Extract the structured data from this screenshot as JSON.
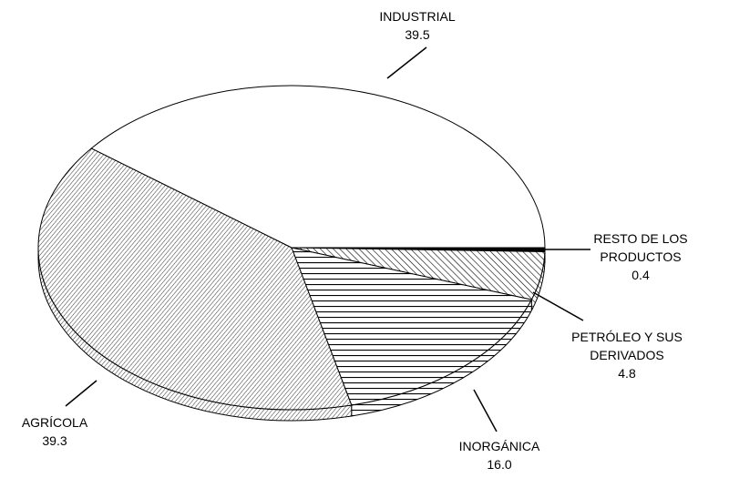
{
  "chart_data": {
    "type": "pie",
    "categories": [
      "RESTO DE LOS PRODUCTOS",
      "PETRÓLEO Y SUS DERIVADOS",
      "INORGÁNICA",
      "AGRÍCOLA",
      "INDUSTRIAL"
    ],
    "values": [
      0.4,
      4.8,
      16.0,
      39.3,
      39.5
    ],
    "value_labels": [
      "0.4",
      "4.8",
      "16.0",
      "39.3",
      "39.5"
    ],
    "fills": [
      "black",
      "hatch",
      "lines",
      "hatch-fine",
      "white"
    ],
    "three_d": true
  }
}
